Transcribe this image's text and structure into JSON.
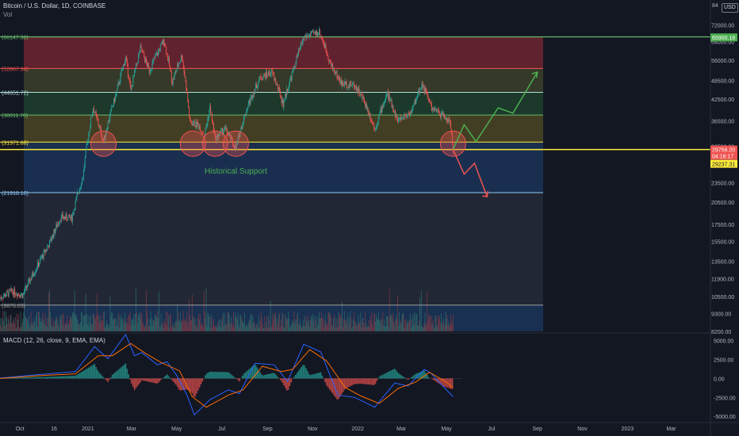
{
  "header": {
    "symbol": "Bitcoin / U.S. Dollar, 1D, COINBASE",
    "vol_label": "Vol",
    "macd_label": "MACD (12, 26, close, 9, EMA, EMA)",
    "currency_badge": "USD",
    "top_axis_label": "84"
  },
  "chart_data": [
    {
      "type": "candlestick",
      "title": "Bitcoin / U.S. Dollar, 1D, COINBASE",
      "y_scale": "log",
      "ylim": [
        8200,
        84000
      ],
      "xlim": [
        "2020-09-04",
        "2023-04-20"
      ],
      "y_ticks": [
        "72000.00",
        "64000.00",
        "56000.00",
        "48500.00",
        "42500.00",
        "36500.00",
        "30500.00",
        "23500.00",
        "20500.00",
        "17500.00",
        "15500.00",
        "13500.00",
        "11900.00",
        "10500.00",
        "9300.00",
        "8200.00"
      ],
      "x_ticks": [
        "Oct",
        "16",
        "2021",
        "Mar",
        "May",
        "Jul",
        "Sep",
        "Nov",
        "2022",
        "Mar",
        "May",
        "Jul",
        "Sep",
        "Nov",
        "2023",
        "Mar"
      ],
      "x_tick_dates": [
        "2020-10-01",
        "2020-11-16",
        "2021-01-01",
        "2021-03-01",
        "2021-05-01",
        "2021-07-01",
        "2021-09-01",
        "2021-11-01",
        "2022-01-01",
        "2022-03-01",
        "2022-05-01",
        "2022-07-01",
        "2022-09-01",
        "2022-11-01",
        "2023-01-01",
        "2023-03-01"
      ],
      "price_path": [
        [
          "2020-09-04",
          10400
        ],
        [
          "2020-09-20",
          10900
        ],
        [
          "2020-10-05",
          10600
        ],
        [
          "2020-10-25",
          13100
        ],
        [
          "2020-11-10",
          15300
        ],
        [
          "2020-11-25",
          18400
        ],
        [
          "2020-12-10",
          18300
        ],
        [
          "2020-12-25",
          24500
        ],
        [
          "2021-01-08",
          40000
        ],
        [
          "2021-01-22",
          31500
        ],
        [
          "2021-02-08",
          44000
        ],
        [
          "2021-02-21",
          57000
        ],
        [
          "2021-02-28",
          45000
        ],
        [
          "2021-03-13",
          61000
        ],
        [
          "2021-03-25",
          52000
        ],
        [
          "2021-04-14",
          64500
        ],
        [
          "2021-04-25",
          48000
        ],
        [
          "2021-05-08",
          58000
        ],
        [
          "2021-05-19",
          36000
        ],
        [
          "2021-05-30",
          35500
        ],
        [
          "2021-06-08",
          33000
        ],
        [
          "2021-06-15",
          40000
        ],
        [
          "2021-06-22",
          32000
        ],
        [
          "2021-07-05",
          34500
        ],
        [
          "2021-07-20",
          30000
        ],
        [
          "2021-08-05",
          40500
        ],
        [
          "2021-08-22",
          49500
        ],
        [
          "2021-09-07",
          51500
        ],
        [
          "2021-09-22",
          41000
        ],
        [
          "2021-10-05",
          51500
        ],
        [
          "2021-10-20",
          66000
        ],
        [
          "2021-11-10",
          68500
        ],
        [
          "2021-11-26",
          54000
        ],
        [
          "2021-12-10",
          47500
        ],
        [
          "2021-12-28",
          47000
        ],
        [
          "2022-01-10",
          41800
        ],
        [
          "2022-01-24",
          34500
        ],
        [
          "2022-02-10",
          44200
        ],
        [
          "2022-02-24",
          36500
        ],
        [
          "2022-03-15",
          39000
        ],
        [
          "2022-03-29",
          47500
        ],
        [
          "2022-04-12",
          39500
        ],
        [
          "2022-04-26",
          38000
        ],
        [
          "2022-05-06",
          36000
        ],
        [
          "2022-05-10",
          29800
        ]
      ],
      "levels": [
        {
          "label": "66147.38",
          "value": 66147.38,
          "color": "#66bb6a"
        },
        {
          "label": "52867.34",
          "value": 52867.34,
          "color": "#ef5350"
        },
        {
          "label": "44651.72",
          "value": 44651.72,
          "color": "#b2dfdb"
        },
        {
          "label": "38011.70",
          "value": 38011.7,
          "color": "#66bb6a"
        },
        {
          "label": "31371.68",
          "value": 31371.68,
          "color": "#ffeb3b"
        },
        {
          "label": "21918.10",
          "value": 21918.1,
          "color": "#90caf9"
        },
        {
          "label": "9876.03",
          "value": 9876.03,
          "color": "#9e9e9e"
        }
      ],
      "price_tags": [
        {
          "label": "65900.18",
          "value": 65900.18,
          "bg": "#4caf50",
          "fg": "#ffffff"
        },
        {
          "label": "29756.20",
          "value": 29756.2,
          "bg": "#ef5350",
          "fg": "#ffffff"
        },
        {
          "label": "04:16:17",
          "value": 28500,
          "bg": "#ef5350",
          "fg": "#ffffff"
        },
        {
          "label": "29237.31",
          "value": 26900,
          "bg": "#ffeb3b",
          "fg": "#131722"
        }
      ],
      "annotations": {
        "support_text": "Historical Support",
        "support_circle_dates": [
          "2021-01-22",
          "2021-05-23",
          "2021-06-22",
          "2021-07-20",
          "2022-05-10"
        ],
        "green_path": [
          [
            "2022-05-10",
            29800
          ],
          [
            "2022-05-25",
            35500
          ],
          [
            "2022-06-10",
            31500
          ],
          [
            "2022-07-10",
            40000
          ],
          [
            "2022-07-30",
            38500
          ],
          [
            "2022-09-01",
            51500
          ]
        ],
        "red_path": [
          [
            "2022-05-10",
            29800
          ],
          [
            "2022-05-25",
            25000
          ],
          [
            "2022-06-08",
            27000
          ],
          [
            "2022-06-25",
            21300
          ]
        ]
      },
      "colors": {
        "up": "#26a69a",
        "down": "#ef5350",
        "current_line": "#ffeb3b",
        "projection_up": "#4caf50",
        "projection_down": "#ef5350"
      }
    },
    {
      "type": "line",
      "title": "MACD (12, 26, close, 9, EMA, EMA)",
      "ylim": [
        -5500,
        6000
      ],
      "y_ticks": [
        "5000.00",
        "2500.00",
        "0.00",
        "-2500.00",
        "-5000.00"
      ],
      "series": [
        {
          "name": "MACD",
          "color": "#2962ff",
          "values": [
            [
              "2020-09-04",
              50
            ],
            [
              "2020-10-25",
              500
            ],
            [
              "2020-12-15",
              900
            ],
            [
              "2021-01-10",
              4200
            ],
            [
              "2021-01-28",
              2600
            ],
            [
              "2021-02-21",
              5800
            ],
            [
              "2021-03-05",
              3000
            ],
            [
              "2021-03-15",
              3400
            ],
            [
              "2021-04-05",
              1800
            ],
            [
              "2021-04-18",
              2200
            ],
            [
              "2021-05-01",
              400
            ],
            [
              "2021-05-15",
              -2200
            ],
            [
              "2021-05-25",
              -4800
            ],
            [
              "2021-06-15",
              -2800
            ],
            [
              "2021-07-10",
              -1500
            ],
            [
              "2021-07-25",
              -2000
            ],
            [
              "2021-08-15",
              2000
            ],
            [
              "2021-09-10",
              1800
            ],
            [
              "2021-09-28",
              -400
            ],
            [
              "2021-10-20",
              4500
            ],
            [
              "2021-11-12",
              3500
            ],
            [
              "2021-12-05",
              -2200
            ],
            [
              "2021-12-28",
              -2500
            ],
            [
              "2022-01-24",
              -3800
            ],
            [
              "2022-02-20",
              -600
            ],
            [
              "2022-03-10",
              -1000
            ],
            [
              "2022-04-01",
              1200
            ],
            [
              "2022-04-10",
              700
            ],
            [
              "2022-04-25",
              -900
            ],
            [
              "2022-05-10",
              -2400
            ]
          ]
        },
        {
          "name": "Signal",
          "color": "#ff6d00",
          "values": [
            [
              "2020-09-04",
              0
            ],
            [
              "2020-11-01",
              400
            ],
            [
              "2020-12-15",
              600
            ],
            [
              "2021-01-15",
              3000
            ],
            [
              "2021-02-03",
              3000
            ],
            [
              "2021-02-28",
              4600
            ],
            [
              "2021-03-20",
              3300
            ],
            [
              "2021-04-10",
              2100
            ],
            [
              "2021-05-05",
              1000
            ],
            [
              "2021-05-22",
              -2400
            ],
            [
              "2021-06-10",
              -3800
            ],
            [
              "2021-07-10",
              -2200
            ],
            [
              "2021-07-30",
              -1500
            ],
            [
              "2021-08-25",
              1600
            ],
            [
              "2021-09-20",
              900
            ],
            [
              "2021-10-05",
              1200
            ],
            [
              "2021-10-28",
              3800
            ],
            [
              "2021-11-20",
              2300
            ],
            [
              "2021-12-15",
              -1200
            ],
            [
              "2022-01-05",
              -2300
            ],
            [
              "2022-01-30",
              -3300
            ],
            [
              "2022-02-25",
              -1300
            ],
            [
              "2022-03-20",
              -500
            ],
            [
              "2022-04-08",
              800
            ],
            [
              "2022-04-28",
              -300
            ],
            [
              "2022-05-10",
              -1200
            ]
          ]
        }
      ]
    }
  ]
}
